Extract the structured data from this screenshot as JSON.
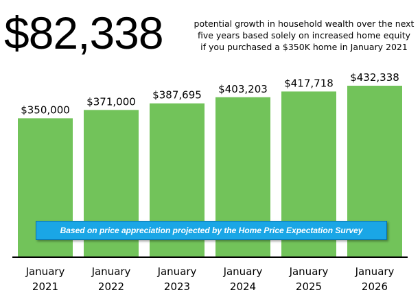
{
  "headline": "$82,338",
  "subtitle_lines": [
    "potential growth in household wealth over the next",
    "five years based solely on increased home equity",
    "if you purchased a $350K home in January 2021"
  ],
  "banner": "Based on price appreciation projected by the Home Price Expectation Survey",
  "colors": {
    "bar": "#72c35a",
    "banner": "#1aa6e6",
    "axis": "#000000"
  },
  "chart_data": {
    "type": "bar",
    "categories": [
      "January 2021",
      "January 2022",
      "January 2023",
      "January 2024",
      "January 2025",
      "January 2026"
    ],
    "category_lines": [
      [
        "January",
        "2021"
      ],
      [
        "January",
        "2022"
      ],
      [
        "January",
        "2023"
      ],
      [
        "January",
        "2024"
      ],
      [
        "January",
        "2025"
      ],
      [
        "January",
        "2026"
      ]
    ],
    "values": [
      350000,
      371000,
      387695,
      403203,
      417718,
      432338
    ],
    "value_labels": [
      "$350,000",
      "$371,000",
      "$387,695",
      "$403,203",
      "$417,718",
      "$432,338"
    ],
    "title": "",
    "xlabel": "",
    "ylabel": "",
    "ylim": [
      0,
      432338
    ],
    "grid": false,
    "legend": "none"
  }
}
